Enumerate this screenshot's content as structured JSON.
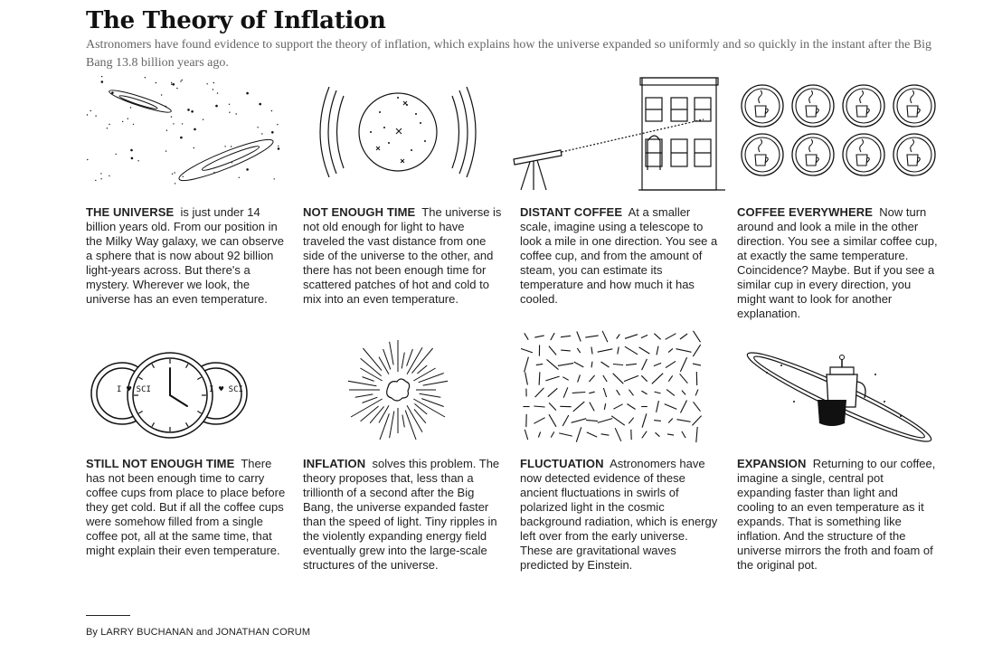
{
  "header": {
    "title": "The Theory of Inflation",
    "dek": "Astronomers have found evidence to support the theory of inflation, which explains how the universe expanded so uniformly and so quickly in the instant after the Big Bang 13.8 billion years ago."
  },
  "panels": [
    {
      "heading": "THE UNIVERSE",
      "body": " is just under 14 billion years old. From our position in the Milky Way galaxy, we can observe a sphere that is now about 92 billion light-years across. But there's a mystery. Wherever we look, the universe has an even temperature."
    },
    {
      "heading": "NOT ENOUGH TIME",
      "body": "The universe is not old enough for light to have traveled the vast distance from one side of the universe to the other, and there has not been enough time for scattered patches of hot and cold to mix into an even temperature."
    },
    {
      "heading": "DISTANT COFFEE",
      "body": " At a smaller scale, imagine using a telescope to look a mile in one direction. You see a coffee cup, and from the amount of steam, you can estimate its temperature and how much it has cooled."
    },
    {
      "heading": "COFFEE EVERYWHERE",
      "body": " Now turn around and look a mile in the other direction. You see a similar coffee cup, at exactly the same temperature. Coincidence? Maybe. But if you see a similar cup in every direction, you might want to look for another explanation."
    },
    {
      "heading": "STILL NOT ENOUGH TIME",
      "body": " There has not been enough time to carry coffee cups from place to place before they get cold. But if all the coffee cups were somehow filled from a single coffee pot, all at the same time, that might explain their even temperature."
    },
    {
      "heading": "INFLATION",
      "body": "solves this problem. The theory proposes that, less than a trillionth of a second after the Big Bang, the universe expanded faster than the speed of light. Tiny ripples in the violently expanding energy field eventually grew into the large-scale structures of the universe."
    },
    {
      "heading": "FLUCTUATION",
      "body": "Astronomers have now detected evidence of these ancient fluctuations in swirls of polarized light in the cosmic background radiation, which is energy left over from the early universe. These are gravitational waves predicted by Einstein."
    },
    {
      "heading": "EXPANSION",
      "body": "Returning to our coffee, imagine a single, central pot expanding faster than light and cooling to an even temperature as it expands. That is something like inflation. And the structure of the universe mirrors the froth and foam of the original pot."
    }
  ],
  "illustrations": {
    "mug_left": "I ♥ SCI",
    "mug_right": "I ♥ SCI"
  },
  "footer": {
    "byline": "By LARRY BUCHANAN and JONATHAN CORUM"
  }
}
